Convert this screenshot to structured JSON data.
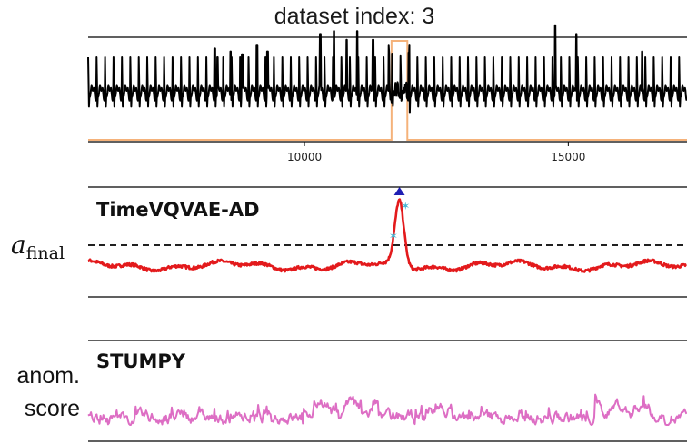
{
  "title": "dataset index: 3",
  "chart_data": [
    {
      "type": "line",
      "title": "dataset index: 3",
      "series": [
        {
          "name": "signal",
          "color": "#000000",
          "description": "periodic ECG-like oscillation, amplitude ~ -1 to 1, with tall spikes near anomalies"
        },
        {
          "name": "anomaly label",
          "color": "#f5b27a",
          "values_segments": [
            {
              "x": [
                11650,
                11950
              ],
              "y": 1
            }
          ]
        }
      ],
      "x_ticks": [
        10000,
        15000
      ],
      "xlim": [
        5900,
        17250
      ]
    },
    {
      "type": "line",
      "method_label": "TimeVQVAE-AD",
      "threshold_label_main": "a",
      "threshold_label_sub": "final",
      "threshold": 0.5,
      "ylim": [
        0,
        1
      ],
      "series": [
        {
          "name": "anomaly score",
          "color": "#e31a1c"
        }
      ],
      "peak_marker": {
        "x": 11800,
        "color": "#1f1fb4"
      },
      "peak_x_range": [
        11650,
        11950
      ]
    },
    {
      "type": "line",
      "method_label": "STUMPY",
      "ylabel_line1": "anom.",
      "ylabel_line2": "score",
      "series": [
        {
          "name": "anomaly score",
          "color": "#dd6ec4"
        }
      ]
    }
  ]
}
